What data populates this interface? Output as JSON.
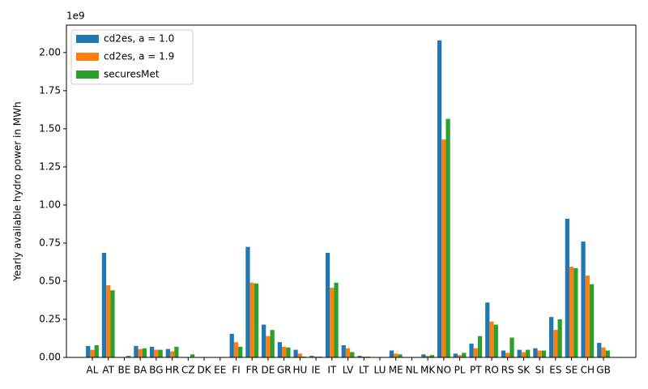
{
  "chart_data": {
    "type": "bar",
    "y_label": "Yearly available hydro power in MWh",
    "y_offset_label": "1e9",
    "categories": [
      "AL",
      "AT",
      "BE",
      "BA",
      "BG",
      "HR",
      "CZ",
      "DK",
      "EE",
      "FI",
      "FR",
      "DE",
      "GR",
      "HU",
      "IE",
      "IT",
      "LV",
      "LT",
      "LU",
      "ME",
      "NL",
      "MK",
      "NO",
      "PL",
      "PT",
      "RO",
      "RS",
      "SK",
      "SI",
      "ES",
      "SE",
      "CH",
      "GB"
    ],
    "series": [
      {
        "name": "cd2es, a = 1.0",
        "color": "#1f77b4",
        "values": [
          0.075,
          0.686,
          0,
          0.075,
          0.07,
          0.055,
          0,
          0,
          0,
          0.155,
          0.725,
          0.215,
          0.1,
          0.05,
          0.01,
          0.686,
          0.08,
          0.01,
          0,
          0.045,
          0,
          0.02,
          2.08,
          0.025,
          0.09,
          0.36,
          0.045,
          0.05,
          0.06,
          0.265,
          0.91,
          0.76,
          0.095
        ]
      },
      {
        "name": "cd2es, a = 1.9",
        "color": "#ff7f0e",
        "values": [
          0.05,
          0.473,
          0,
          0.055,
          0.05,
          0.04,
          0,
          0,
          0,
          0.1,
          0.49,
          0.14,
          0.07,
          0.025,
          0.005,
          0.457,
          0.06,
          0.005,
          0,
          0.025,
          0,
          0.01,
          1.43,
          0.015,
          0.06,
          0.235,
          0.03,
          0.035,
          0.045,
          0.18,
          0.595,
          0.537,
          0.065
        ]
      },
      {
        "name": "securesMet",
        "color": "#2ca02c",
        "values": [
          0.08,
          0.44,
          0.01,
          0.06,
          0.05,
          0.07,
          0.02,
          0,
          0,
          0.07,
          0.485,
          0.18,
          0.065,
          0.005,
          0.005,
          0.49,
          0.035,
          0.005,
          0,
          0.02,
          0,
          0.015,
          1.565,
          0.03,
          0.14,
          0.215,
          0.13,
          0.05,
          0.045,
          0.25,
          0.585,
          0.48,
          0.045
        ]
      }
    ],
    "ylim": [
      0,
      2.18
    ],
    "yticks": [
      {
        "value": 0,
        "label": "0.00"
      },
      {
        "value": 0.25,
        "label": "0.25"
      },
      {
        "value": 0.5,
        "label": "0.50"
      },
      {
        "value": 0.75,
        "label": "0.75"
      },
      {
        "value": 1,
        "label": "1.00"
      },
      {
        "value": 1.25,
        "label": "1.25"
      },
      {
        "value": 1.5,
        "label": "1.50"
      },
      {
        "value": 1.75,
        "label": "1.75"
      },
      {
        "value": 2,
        "label": "2.00"
      }
    ],
    "legend": "upper left"
  }
}
